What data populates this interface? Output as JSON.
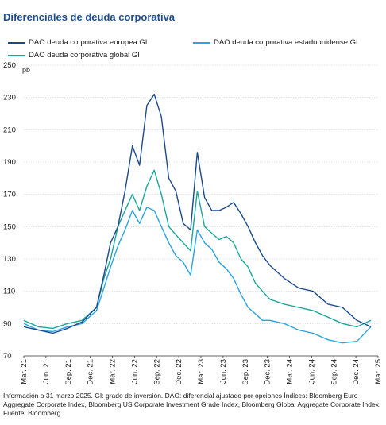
{
  "title": "Diferenciales de deuda corporativa",
  "legend": [
    {
      "name": "DAO deuda corporativa europea GI",
      "color": "#1b4a8a"
    },
    {
      "name": "DAO deuda corporativa estadounidense GI",
      "color": "#2aa3e0"
    },
    {
      "name": "DAO deuda corporativa global GI",
      "color": "#1aa69a"
    }
  ],
  "footnote": "Información a 31 marzo 2025. GI: grado de inversión. DAO: diferencial ajustado por opciones Índices: Bloomberg Euro Aggregate Corporate Index, Bloomberg US Corporate Investment Grade Index, Bloomberg Global Aggregate Corporate Index. Fuente: Bloomberg",
  "chart_data": {
    "type": "line",
    "title": "Diferenciales de deuda corporativa",
    "ylabel": "pb",
    "ylim": [
      70,
      250
    ],
    "yticks": [
      70,
      90,
      110,
      130,
      150,
      170,
      190,
      210,
      230,
      250
    ],
    "xticks": [
      "Mar. 21",
      "Jun. 21",
      "Sep. 21",
      "Dec. 21",
      "Mar. 22",
      "Jun. 22",
      "Sep. 22",
      "Dec. 22",
      "Mar. 23",
      "Jun. 23",
      "Sep. 23",
      "Dec. 23",
      "Mar. 24",
      "Jun. 24",
      "Sep. 24",
      "Dec. 24",
      "Mar. 25"
    ],
    "grid": "horizontal",
    "legend_position": "top",
    "x": [
      "2021-03",
      "2021-05",
      "2021-07",
      "2021-09",
      "2021-11",
      "2022-01",
      "2022-02",
      "2022-03",
      "2022-04",
      "2022-05",
      "2022-06",
      "2022-07",
      "2022-08",
      "2022-09",
      "2022-10",
      "2022-11",
      "2022-12",
      "2023-01",
      "2023-02",
      "2023-03",
      "2023-04",
      "2023-05",
      "2023-06",
      "2023-07",
      "2023-08",
      "2023-09",
      "2023-10",
      "2023-11",
      "2023-12",
      "2024-01",
      "2024-03",
      "2024-05",
      "2024-07",
      "2024-09",
      "2024-11",
      "2025-01",
      "2025-03"
    ],
    "series": [
      {
        "name": "DAO deuda corporativa europea GI",
        "color": "#1b4a8a",
        "values": [
          88,
          86,
          84,
          87,
          91,
          100,
          120,
          140,
          150,
          172,
          200,
          188,
          225,
          232,
          218,
          180,
          172,
          152,
          148,
          196,
          168,
          160,
          160,
          162,
          165,
          158,
          150,
          140,
          132,
          126,
          118,
          112,
          110,
          102,
          100,
          92,
          88
        ]
      },
      {
        "name": "DAO deuda corporativa estadounidense GI",
        "color": "#2aa3e0",
        "values": [
          90,
          86,
          85,
          88,
          90,
          98,
          112,
          125,
          138,
          148,
          160,
          152,
          162,
          160,
          150,
          140,
          132,
          128,
          120,
          148,
          140,
          136,
          128,
          124,
          118,
          108,
          100,
          96,
          92,
          92,
          90,
          86,
          84,
          80,
          78,
          79,
          88
        ]
      },
      {
        "name": "DAO deuda corporativa global GI",
        "color": "#1aa69a",
        "values": [
          92,
          88,
          87,
          90,
          92,
          100,
          118,
          130,
          150,
          160,
          170,
          160,
          175,
          185,
          170,
          150,
          145,
          140,
          135,
          172,
          150,
          146,
          142,
          144,
          140,
          130,
          125,
          115,
          110,
          105,
          102,
          100,
          98,
          94,
          90,
          88,
          92
        ]
      }
    ]
  }
}
